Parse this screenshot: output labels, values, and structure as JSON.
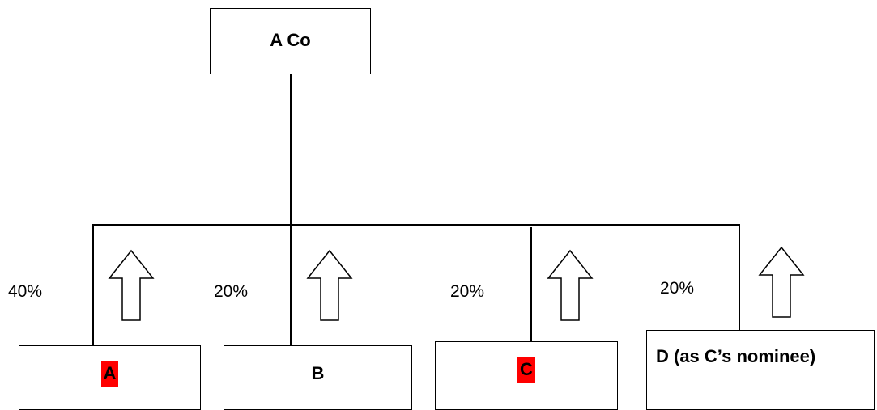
{
  "parent": {
    "label": "A Co"
  },
  "shareholders": [
    {
      "name": "A",
      "percent": "40%",
      "highlighted": true
    },
    {
      "name": "B",
      "percent": "20%",
      "highlighted": false
    },
    {
      "name": "C",
      "percent": "20%",
      "highlighted": true
    },
    {
      "name": "D (as C’s nominee)",
      "percent": "20%",
      "highlighted": false
    }
  ],
  "colors": {
    "highlight": "#ff0000",
    "stroke": "#000000"
  }
}
